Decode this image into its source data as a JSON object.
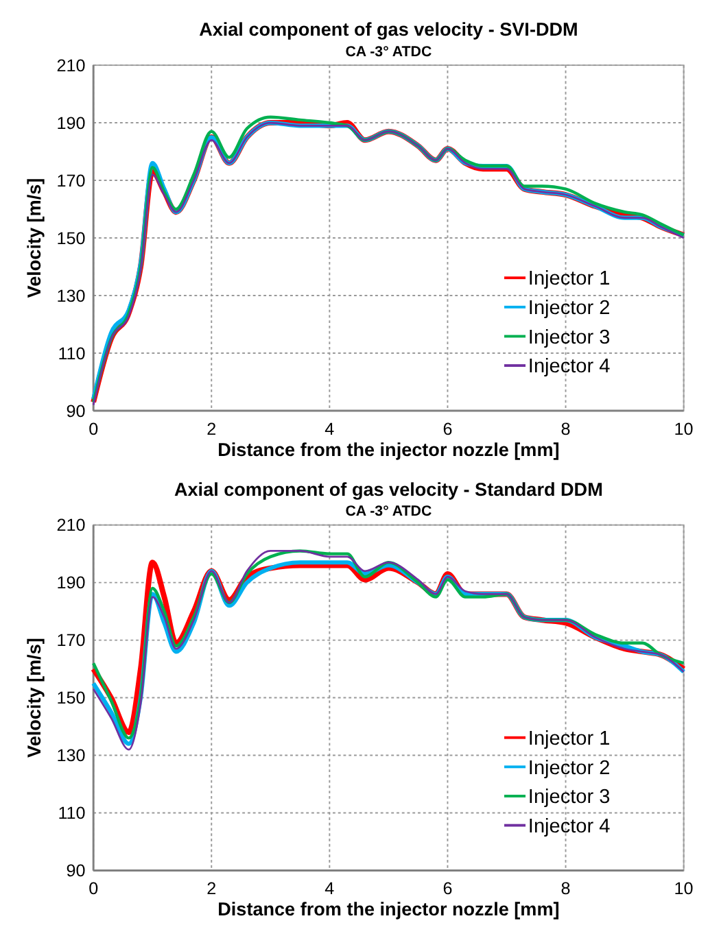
{
  "chart_data": [
    {
      "type": "line",
      "title": "Axial component of gas velocity - SVI-DDM",
      "subtitle": "CA -3° ATDC",
      "xlabel": "Distance from the injector nozzle [mm]",
      "ylabel": "Velocity [m/s]",
      "x": [
        0,
        0.3,
        0.6,
        0.8,
        1.0,
        1.2,
        1.4,
        1.7,
        2.0,
        2.3,
        2.6,
        3.0,
        3.5,
        4.0,
        4.3,
        4.6,
        5.0,
        5.5,
        5.8,
        6.0,
        6.3,
        6.6,
        7.0,
        7.3,
        7.6,
        8.0,
        8.5,
        9.0,
        9.3,
        9.6,
        10
      ],
      "xlim": [
        0,
        10
      ],
      "xticks": [
        0,
        2,
        4,
        6,
        8,
        10
      ],
      "ylim": [
        90,
        210
      ],
      "yticks": [
        90,
        110,
        130,
        150,
        170,
        190,
        210
      ],
      "grid": true,
      "legend": "right",
      "line_style": "solid",
      "marker": "none",
      "series": [
        {
          "name": "Injector 1",
          "color": "#ff0000",
          "values": [
            93,
            115,
            124,
            140,
            173,
            166,
            159,
            170,
            185,
            176,
            185,
            190,
            190,
            189,
            190,
            184,
            187,
            182,
            177,
            181,
            176,
            174,
            174,
            167,
            166,
            165,
            161,
            158,
            157,
            154,
            151
          ]
        },
        {
          "name": "Injector 2",
          "color": "#00b0f0",
          "values": [
            94,
            117,
            125,
            141,
            176,
            167,
            159,
            170,
            185,
            176,
            185,
            190,
            189,
            189,
            189,
            184,
            187,
            182,
            177,
            181,
            176,
            175,
            175,
            167,
            166,
            165,
            161,
            157,
            157,
            154,
            151
          ]
        },
        {
          "name": "Injector 3",
          "color": "#00b050",
          "values": [
            93,
            115,
            124,
            140,
            174.5,
            166,
            160,
            172,
            187,
            178,
            188,
            192,
            191,
            190,
            189,
            184,
            187,
            182,
            177,
            181,
            177,
            175,
            175,
            168,
            168,
            167,
            162,
            159,
            158,
            155,
            151
          ]
        },
        {
          "name": "Injector 4",
          "color": "#7030a0",
          "values": [
            92,
            115,
            123,
            139,
            172,
            165,
            159,
            170,
            184,
            176,
            185,
            190,
            189,
            189,
            189,
            184,
            187,
            182,
            177,
            181,
            176,
            174,
            174,
            167,
            166,
            165,
            161,
            157,
            157,
            154,
            150
          ]
        }
      ]
    },
    {
      "type": "line",
      "title": "Axial component of gas velocity - Standard DDM",
      "subtitle": "CA -3° ATDC",
      "xlabel": "Distance from the injector nozzle [mm]",
      "ylabel": "Velocity [m/s]",
      "x": [
        0,
        0.3,
        0.6,
        0.8,
        1.0,
        1.2,
        1.4,
        1.7,
        2.0,
        2.3,
        2.6,
        3.0,
        3.5,
        4.0,
        4.3,
        4.6,
        5.0,
        5.5,
        5.8,
        6.0,
        6.3,
        6.6,
        7.0,
        7.3,
        7.6,
        8.0,
        8.5,
        9.0,
        9.3,
        9.6,
        10
      ],
      "xlim": [
        0,
        10
      ],
      "xticks": [
        0,
        2,
        4,
        6,
        8,
        10
      ],
      "ylim": [
        90,
        210
      ],
      "yticks": [
        90,
        110,
        130,
        150,
        170,
        190,
        210
      ],
      "grid": true,
      "legend": "right",
      "line_style": "solid",
      "marker": "none",
      "series": [
        {
          "name": "Injector 1",
          "color": "#ff0000",
          "values": [
            160,
            150,
            138,
            160,
            197,
            185,
            169,
            180,
            194,
            184,
            192,
            195,
            196,
            196,
            196,
            191,
            195,
            190,
            186,
            193,
            186,
            186,
            186,
            178,
            177,
            176,
            171,
            167,
            166,
            165,
            160
          ]
        },
        {
          "name": "Injector 2",
          "color": "#00b0f0",
          "values": [
            155,
            145,
            134,
            150,
            186,
            176,
            166,
            176,
            194,
            182,
            190,
            195,
            197,
            197,
            197,
            193,
            196,
            190,
            186,
            192,
            186,
            186,
            186,
            178,
            177,
            177,
            171,
            168,
            166,
            165,
            159
          ]
        },
        {
          "name": "Injector 3",
          "color": "#00b050",
          "values": [
            162,
            149,
            136,
            150,
            188,
            180,
            168,
            178,
            193,
            183,
            193,
            199,
            201,
            200,
            200,
            192,
            197,
            190,
            185,
            191,
            185,
            185,
            186,
            178,
            177,
            177,
            172,
            169,
            169,
            165,
            162
          ]
        },
        {
          "name": "Injector 4",
          "color": "#7030a0",
          "values": [
            153,
            143,
            132,
            148,
            185,
            178,
            167,
            177,
            194,
            183,
            194,
            201,
            201,
            199,
            199,
            194,
            197,
            191,
            186,
            192,
            187,
            186,
            186,
            178,
            177,
            177,
            171,
            167,
            166,
            165,
            159
          ]
        }
      ]
    }
  ]
}
